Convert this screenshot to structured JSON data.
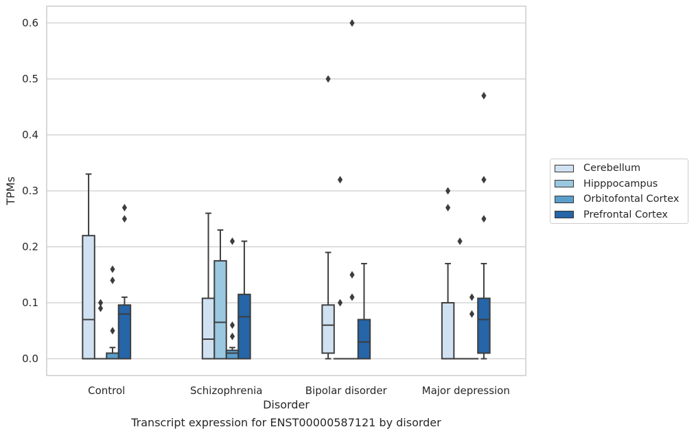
{
  "chart_data": {
    "type": "box",
    "caption": "Transcript expression for ENST00000587121 by disorder",
    "xlabel": "Disorder",
    "ylabel": "TPMs",
    "ylim": [
      -0.03,
      0.63
    ],
    "yticks": [
      0.0,
      0.1,
      0.2,
      0.3,
      0.4,
      0.5,
      0.6
    ],
    "ytick_labels": [
      "0.0",
      "0.1",
      "0.2",
      "0.3",
      "0.4",
      "0.5",
      "0.6"
    ],
    "grid": true,
    "legend_position": "right",
    "categories": [
      "Control",
      "Schizophrenia",
      "Bipolar disorder",
      "Major depression"
    ],
    "series": [
      {
        "name": "Cerebellum",
        "color": "#d0e1f2",
        "boxes": [
          {
            "whisker_low": 0.0,
            "q1": 0.0,
            "median": 0.07,
            "q3": 0.22,
            "whisker_high": 0.33,
            "outliers": []
          },
          {
            "whisker_low": 0.0,
            "q1": 0.0,
            "median": 0.035,
            "q3": 0.108,
            "whisker_high": 0.26,
            "outliers": []
          },
          {
            "whisker_low": 0.0,
            "q1": 0.01,
            "median": 0.06,
            "q3": 0.096,
            "whisker_high": 0.19,
            "outliers": [
              0.5
            ]
          },
          {
            "whisker_low": 0.0,
            "q1": 0.0,
            "median": 0.0,
            "q3": 0.1,
            "whisker_high": 0.17,
            "outliers": [
              0.3,
              0.27
            ]
          }
        ]
      },
      {
        "name": "Hipppocampus",
        "color": "#9ac8e0",
        "boxes": [
          {
            "whisker_low": 0.0,
            "q1": 0.0,
            "median": 0.0,
            "q3": 0.0,
            "whisker_high": 0.0,
            "outliers": [
              0.1,
              0.09
            ]
          },
          {
            "whisker_low": 0.0,
            "q1": 0.0,
            "median": 0.065,
            "q3": 0.175,
            "whisker_high": 0.23,
            "outliers": []
          },
          {
            "whisker_low": 0.0,
            "q1": 0.0,
            "median": 0.0,
            "q3": 0.0,
            "whisker_high": 0.0,
            "outliers": [
              0.32,
              0.1
            ]
          },
          {
            "whisker_low": 0.0,
            "q1": 0.0,
            "median": 0.0,
            "q3": 0.0,
            "whisker_high": 0.0,
            "outliers": [
              0.21
            ]
          }
        ]
      },
      {
        "name": "Orbitofontal Cortex",
        "color": "#5a9ecc",
        "boxes": [
          {
            "whisker_low": 0.0,
            "q1": 0.0,
            "median": 0.0,
            "q3": 0.01,
            "whisker_high": 0.02,
            "outliers": [
              0.16,
              0.14,
              0.05
            ]
          },
          {
            "whisker_low": 0.0,
            "q1": 0.0,
            "median": 0.01,
            "q3": 0.015,
            "whisker_high": 0.02,
            "outliers": [
              0.21,
              0.06,
              0.04
            ]
          },
          {
            "whisker_low": 0.0,
            "q1": 0.0,
            "median": 0.0,
            "q3": 0.0,
            "whisker_high": 0.0,
            "outliers": [
              0.6,
              0.15,
              0.11
            ]
          },
          {
            "whisker_low": 0.0,
            "q1": 0.0,
            "median": 0.0,
            "q3": 0.0,
            "whisker_high": 0.0,
            "outliers": [
              0.11,
              0.08
            ]
          }
        ]
      },
      {
        "name": "Prefrontal Cortex",
        "color": "#2565a8",
        "boxes": [
          {
            "whisker_low": 0.0,
            "q1": 0.0,
            "median": 0.08,
            "q3": 0.096,
            "whisker_high": 0.11,
            "outliers": [
              0.27,
              0.25
            ]
          },
          {
            "whisker_low": 0.0,
            "q1": 0.0,
            "median": 0.075,
            "q3": 0.115,
            "whisker_high": 0.21,
            "outliers": []
          },
          {
            "whisker_low": 0.0,
            "q1": 0.0,
            "median": 0.03,
            "q3": 0.07,
            "whisker_high": 0.17,
            "outliers": []
          },
          {
            "whisker_low": 0.0,
            "q1": 0.01,
            "median": 0.07,
            "q3": 0.108,
            "whisker_high": 0.17,
            "outliers": [
              0.47,
              0.32,
              0.25
            ]
          }
        ]
      }
    ]
  }
}
